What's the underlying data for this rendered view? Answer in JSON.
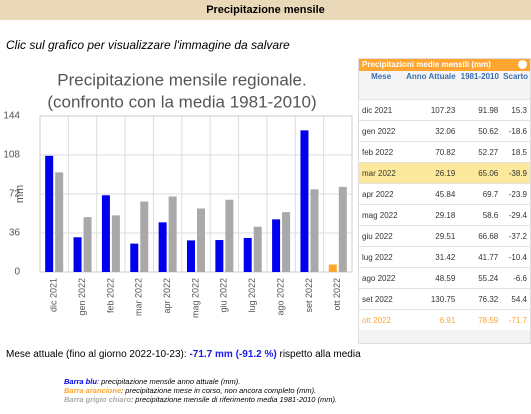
{
  "header": {
    "title": "Precipitazione mensile",
    "subtitle": "Clic sul grafico per visualizzare l'immagine da salvare"
  },
  "chart_data": {
    "type": "bar",
    "title": [
      "Precipitazione mensile regionale.",
      "(confronto con la media 1981-2010)"
    ],
    "y_label": "mm",
    "categories": [
      "dic 2021",
      "gen 2022",
      "feb 2022",
      "mar 2022",
      "apr 2022",
      "mag 2022",
      "giu 2022",
      "lug 2022",
      "ago 2022",
      "set 2022",
      "ott 2022"
    ],
    "series": [
      {
        "color": "#0000ee",
        "colors": [
          "#0000ee",
          "#0000ee",
          "#0000ee",
          "#0000ee",
          "#0000ee",
          "#0000ee",
          "#0000ee",
          "#0000ee",
          "#0000ee",
          "#0000ee",
          "#ffa530"
        ],
        "values": [
          107.23,
          32.06,
          70.82,
          26.19,
          45.84,
          29.18,
          29.51,
          31.42,
          48.59,
          130.75,
          6.91
        ]
      },
      {
        "color": "#a9a9a9",
        "values": [
          91.98,
          50.62,
          52.27,
          65.06,
          69.7,
          58.6,
          66.68,
          41.77,
          55.24,
          76.32,
          78.59
        ]
      }
    ],
    "ylim": [
      0,
      144
    ],
    "yticks": [
      0,
      36,
      72,
      108,
      144
    ],
    "grid": true
  },
  "table": {
    "title": "Precipitazioni medie mensili (mm)",
    "columns": [
      "Mese",
      "Anno Attuale",
      "1981-2010",
      "Scarto"
    ],
    "scarto": [
      15.3,
      -18.6,
      18.5,
      -38.9,
      -23.9,
      -29.4,
      -37.2,
      -10.4,
      -6.6,
      54.4,
      -71.7
    ]
  },
  "current": {
    "prefix": "Mese attuale (fino al giorno 2022-10-23):",
    "value": "-71.7 mm",
    "percent": "(-91.2 %)",
    "suffix": "rispetto alla media"
  },
  "notes": [
    {
      "label": "Barra blu",
      "text": ": precipitazione mensile anno attuale (mm)."
    },
    {
      "label": "Barra arancione",
      "text": ": precipitazione mese in corso, non ancora completo (mm)."
    },
    {
      "label": "Barra grigio chiaro",
      "text": ": precipitazione mensile di riferimento media 1981-2010 (mm)."
    }
  ]
}
